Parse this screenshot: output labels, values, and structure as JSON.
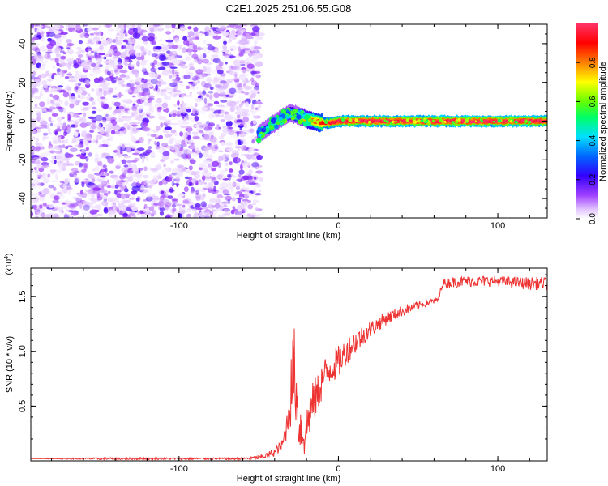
{
  "title": "C2E1.2025.251.06.55.G08",
  "top_panel": {
    "xlabel": "Height of straight line (km)",
    "ylabel": "Frequency (Hz)",
    "colorbar_label": "Normalized spectral amplitude"
  },
  "bottom_panel": {
    "xlabel": "Height of straight line (km)",
    "ylabel": "SNR (10 * v/v)",
    "yscale_label": "(x10",
    "yscale_exp": "4",
    "yscale_close": ")"
  },
  "chart_data": [
    {
      "type": "heatmap",
      "title": "C2E1.2025.251.06.55.G08",
      "xlabel": "Height of straight line (km)",
      "ylabel": "Frequency (Hz)",
      "xlim": [
        -193,
        131
      ],
      "ylim": [
        -50,
        50
      ],
      "xticks": [
        -100,
        0,
        100
      ],
      "xtick_labels": [
        "-100",
        "0",
        "100"
      ],
      "yticks": [
        -40,
        -20,
        0,
        20,
        40
      ],
      "ytick_labels": [
        "-40",
        "-20",
        "0",
        "20",
        "40"
      ],
      "grid": false,
      "colorbar": {
        "label": "Normalized spectral amplitude",
        "range": [
          0,
          1
        ],
        "ticks": [
          0.0,
          0.2,
          0.4,
          0.6,
          0.8
        ],
        "tick_labels": [
          "0.0",
          "0.2",
          "0.4",
          "0.6",
          "0.8"
        ],
        "colormap": [
          "#ffffff",
          "#d9b3ff",
          "#9933ff",
          "#3300ff",
          "#0066ff",
          "#00e0ff",
          "#00ff66",
          "#66ff00",
          "#ffff00",
          "#ff8000",
          "#ff0000",
          "#ff3366"
        ]
      },
      "noise_region_x": [
        -193,
        -49
      ],
      "ridge": {
        "x": [
          -50,
          -45,
          -40,
          -35,
          -30,
          -25,
          -20,
          -15,
          -10,
          -5,
          0,
          10,
          20,
          40,
          60,
          80,
          100,
          131
        ],
        "frequency": [
          -7,
          -4,
          -1,
          2,
          4,
          3,
          1,
          0,
          -1,
          -1,
          0,
          0,
          0,
          0,
          0,
          0,
          0,
          0
        ],
        "amplitude": [
          0.35,
          0.45,
          0.5,
          0.55,
          0.6,
          0.7,
          0.8,
          0.85,
          0.9,
          0.95,
          0.97,
          0.98,
          0.98,
          0.98,
          0.98,
          0.98,
          0.98,
          0.98
        ]
      }
    },
    {
      "type": "line",
      "title": "",
      "xlabel": "Height of straight line (km)",
      "ylabel": "SNR (10 * v/v)",
      "yscale": "x10^4",
      "xlim": [
        -193,
        131
      ],
      "ylim": [
        0,
        1.76
      ],
      "xticks": [
        -100,
        0,
        100
      ],
      "xtick_labels": [
        "-100",
        "0",
        "100"
      ],
      "yticks": [
        0.5,
        1.0,
        1.5
      ],
      "ytick_labels": [
        "0.5",
        "1.0",
        "1.5"
      ],
      "grid": false,
      "series": [
        {
          "color": "#ee3333",
          "x": [
            -193,
            -150,
            -100,
            -60,
            -50,
            -45,
            -40,
            -35,
            -32,
            -30,
            -28,
            -26,
            -25,
            -22,
            -20,
            -18,
            -15,
            -12,
            -10,
            -5,
            0,
            5,
            10,
            20,
            30,
            40,
            50,
            60,
            63,
            65,
            70,
            80,
            90,
            100,
            110,
            120,
            131
          ],
          "y": [
            0.02,
            0.02,
            0.02,
            0.02,
            0.03,
            0.05,
            0.08,
            0.15,
            0.35,
            0.6,
            0.9,
            0.55,
            0.35,
            0.25,
            0.3,
            0.45,
            0.55,
            0.65,
            0.75,
            0.85,
            0.9,
            1.0,
            1.08,
            1.2,
            1.3,
            1.37,
            1.42,
            1.46,
            1.48,
            1.62,
            1.63,
            1.64,
            1.64,
            1.64,
            1.63,
            1.62,
            1.62
          ],
          "noise": [
            0,
            0.01,
            0.01,
            0.01,
            0.02,
            0.03,
            0.04,
            0.05,
            0.15,
            0.3,
            0.4,
            0.3,
            0.25,
            0.25,
            0.25,
            0.22,
            0.2,
            0.18,
            0.18,
            0.15,
            0.15,
            0.12,
            0.12,
            0.08,
            0.06,
            0.05,
            0.04,
            0.03,
            0.03,
            0.04,
            0.05,
            0.05,
            0.05,
            0.05,
            0.05,
            0.06,
            0.06
          ]
        }
      ]
    }
  ]
}
